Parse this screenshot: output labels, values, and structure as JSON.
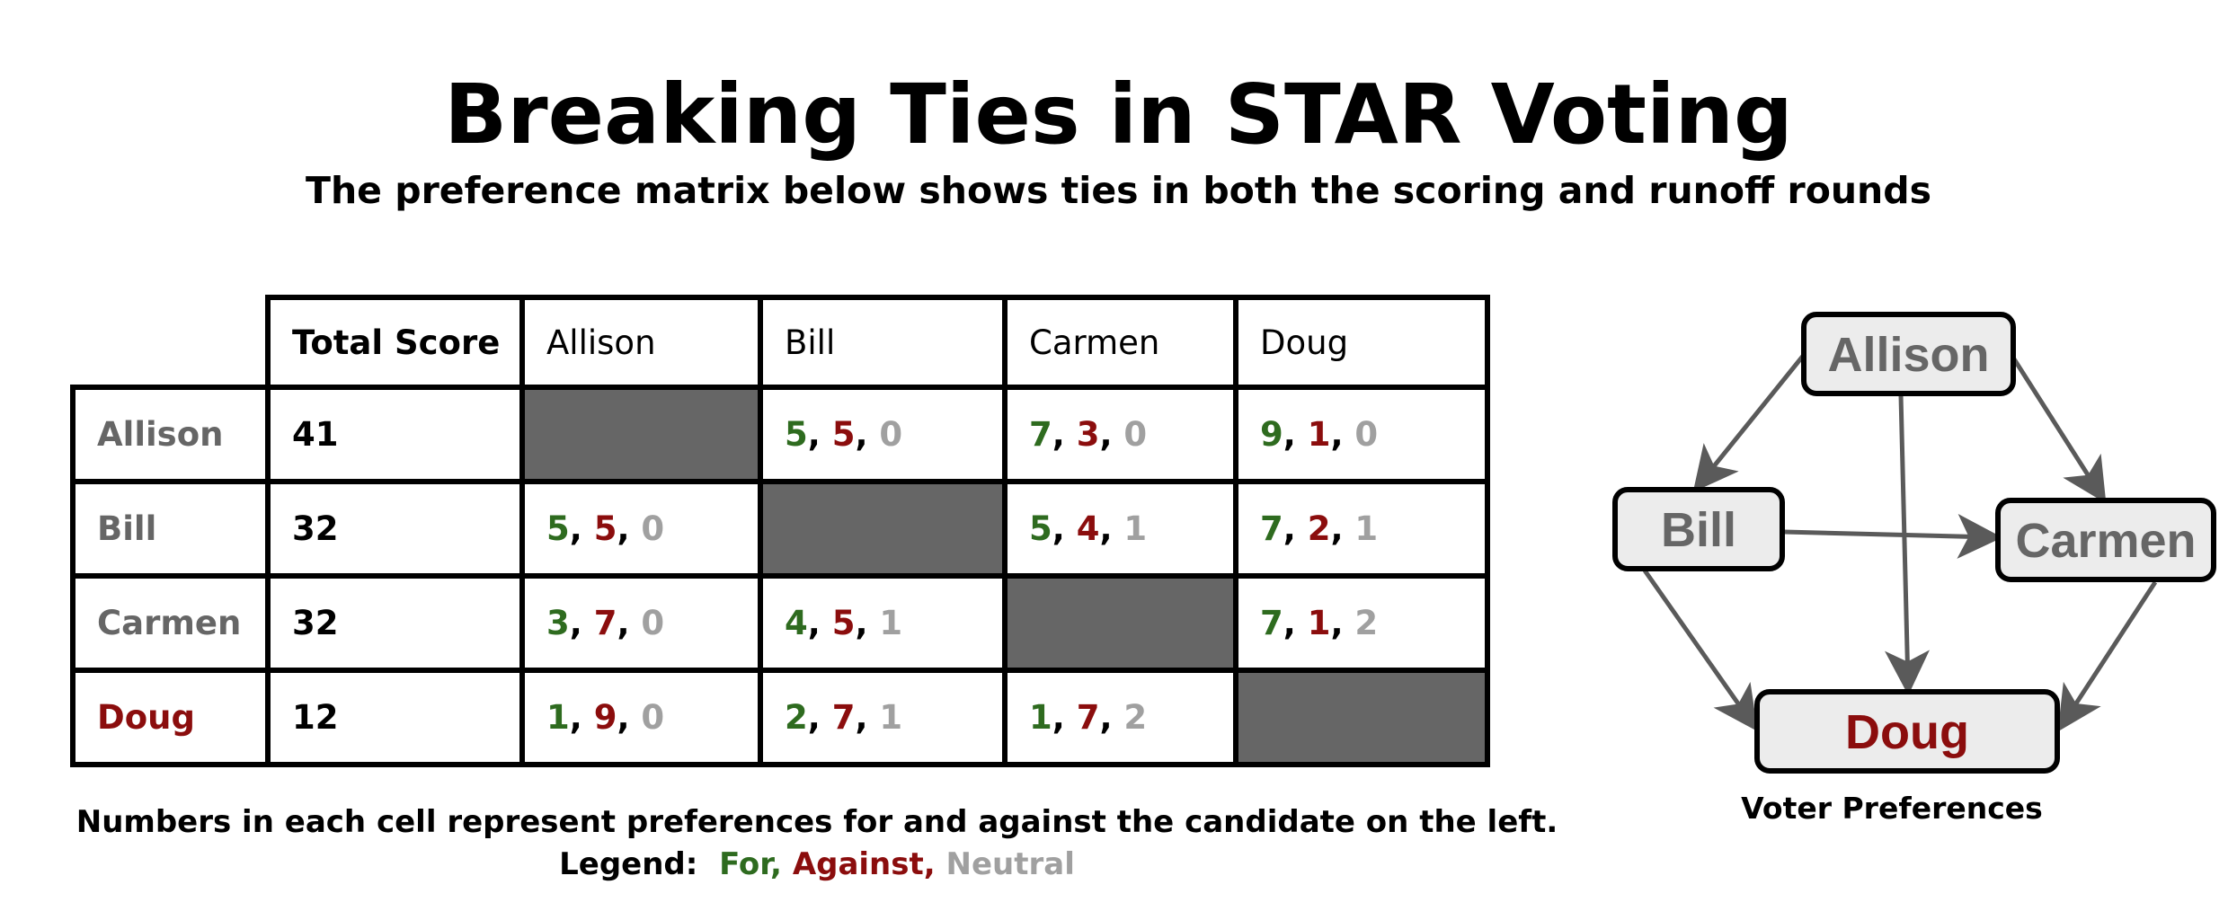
{
  "title": "Breaking Ties in STAR Voting",
  "subtitle": "The preference matrix below shows ties in both the scoring and runoff rounds",
  "matrix": {
    "total_score_header": "Total Score",
    "columns": [
      "Allison",
      "Bill",
      "Carmen",
      "Doug"
    ],
    "rows": [
      {
        "name": "Allison",
        "score": "41",
        "cells": [
          null,
          [
            "5",
            "5",
            "0"
          ],
          [
            "7",
            "3",
            "0"
          ],
          [
            "9",
            "1",
            "0"
          ]
        ]
      },
      {
        "name": "Bill",
        "score": "32",
        "cells": [
          [
            "5",
            "5",
            "0"
          ],
          null,
          [
            "5",
            "4",
            "1"
          ],
          [
            "7",
            "2",
            "1"
          ]
        ]
      },
      {
        "name": "Carmen",
        "score": "32",
        "cells": [
          [
            "3",
            "7",
            "0"
          ],
          [
            "4",
            "5",
            "1"
          ],
          null,
          [
            "7",
            "1",
            "2"
          ]
        ]
      },
      {
        "name": "Doug",
        "score": "12",
        "cells": [
          [
            "1",
            "9",
            "0"
          ],
          [
            "2",
            "7",
            "1"
          ],
          [
            "1",
            "7",
            "2"
          ],
          null
        ]
      }
    ]
  },
  "note": "Numbers in each cell represent preferences for and against the candidate on the left.",
  "legend": {
    "label": "Legend:",
    "for": "For,",
    "against": "Against,",
    "neutral": "Neutral"
  },
  "graph": {
    "nodes": [
      "Allison",
      "Bill",
      "Carmen",
      "Doug"
    ],
    "edges": [
      [
        "Allison",
        "Bill"
      ],
      [
        "Allison",
        "Carmen"
      ],
      [
        "Allison",
        "Doug"
      ],
      [
        "Bill",
        "Carmen"
      ],
      [
        "Bill",
        "Doug"
      ],
      [
        "Carmen",
        "Doug"
      ]
    ],
    "caption": "Voter Preferences"
  },
  "colors": {
    "for": "#2e6b1f",
    "against": "#8b0d0d",
    "neutral": "#a0a0a0",
    "diagonal_fill": "#666666",
    "node_fill": "#ececec",
    "node_text": "#666666",
    "winner_text": "#8b0d0d",
    "arrow": "#5a5a5a"
  }
}
